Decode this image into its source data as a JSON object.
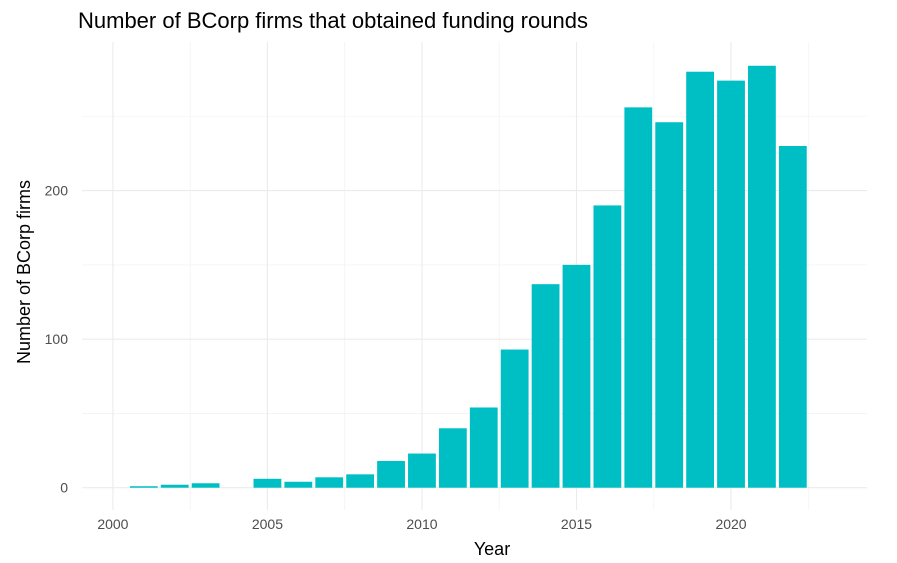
{
  "chart_data": {
    "type": "bar",
    "title": "Number of BCorp firms that obtained funding rounds",
    "xlabel": "Year",
    "ylabel": "Number of BCorp firms",
    "x": [
      2001,
      2002,
      2003,
      2005,
      2006,
      2007,
      2008,
      2009,
      2010,
      2011,
      2012,
      2013,
      2014,
      2015,
      2016,
      2017,
      2018,
      2019,
      2020,
      2021,
      2022
    ],
    "values": [
      1,
      2,
      3,
      6,
      4,
      7,
      9,
      18,
      23,
      40,
      54,
      93,
      137,
      150,
      190,
      256,
      246,
      280,
      274,
      284,
      230
    ],
    "xticks": [
      2000,
      2005,
      2010,
      2015,
      2020
    ],
    "yticks": [
      0,
      100,
      200
    ],
    "xlim": [
      1999.0,
      2024.4
    ],
    "ylim": [
      -15,
      300
    ],
    "bar_color": "#00BFC4",
    "grid": true,
    "legend": "none"
  }
}
